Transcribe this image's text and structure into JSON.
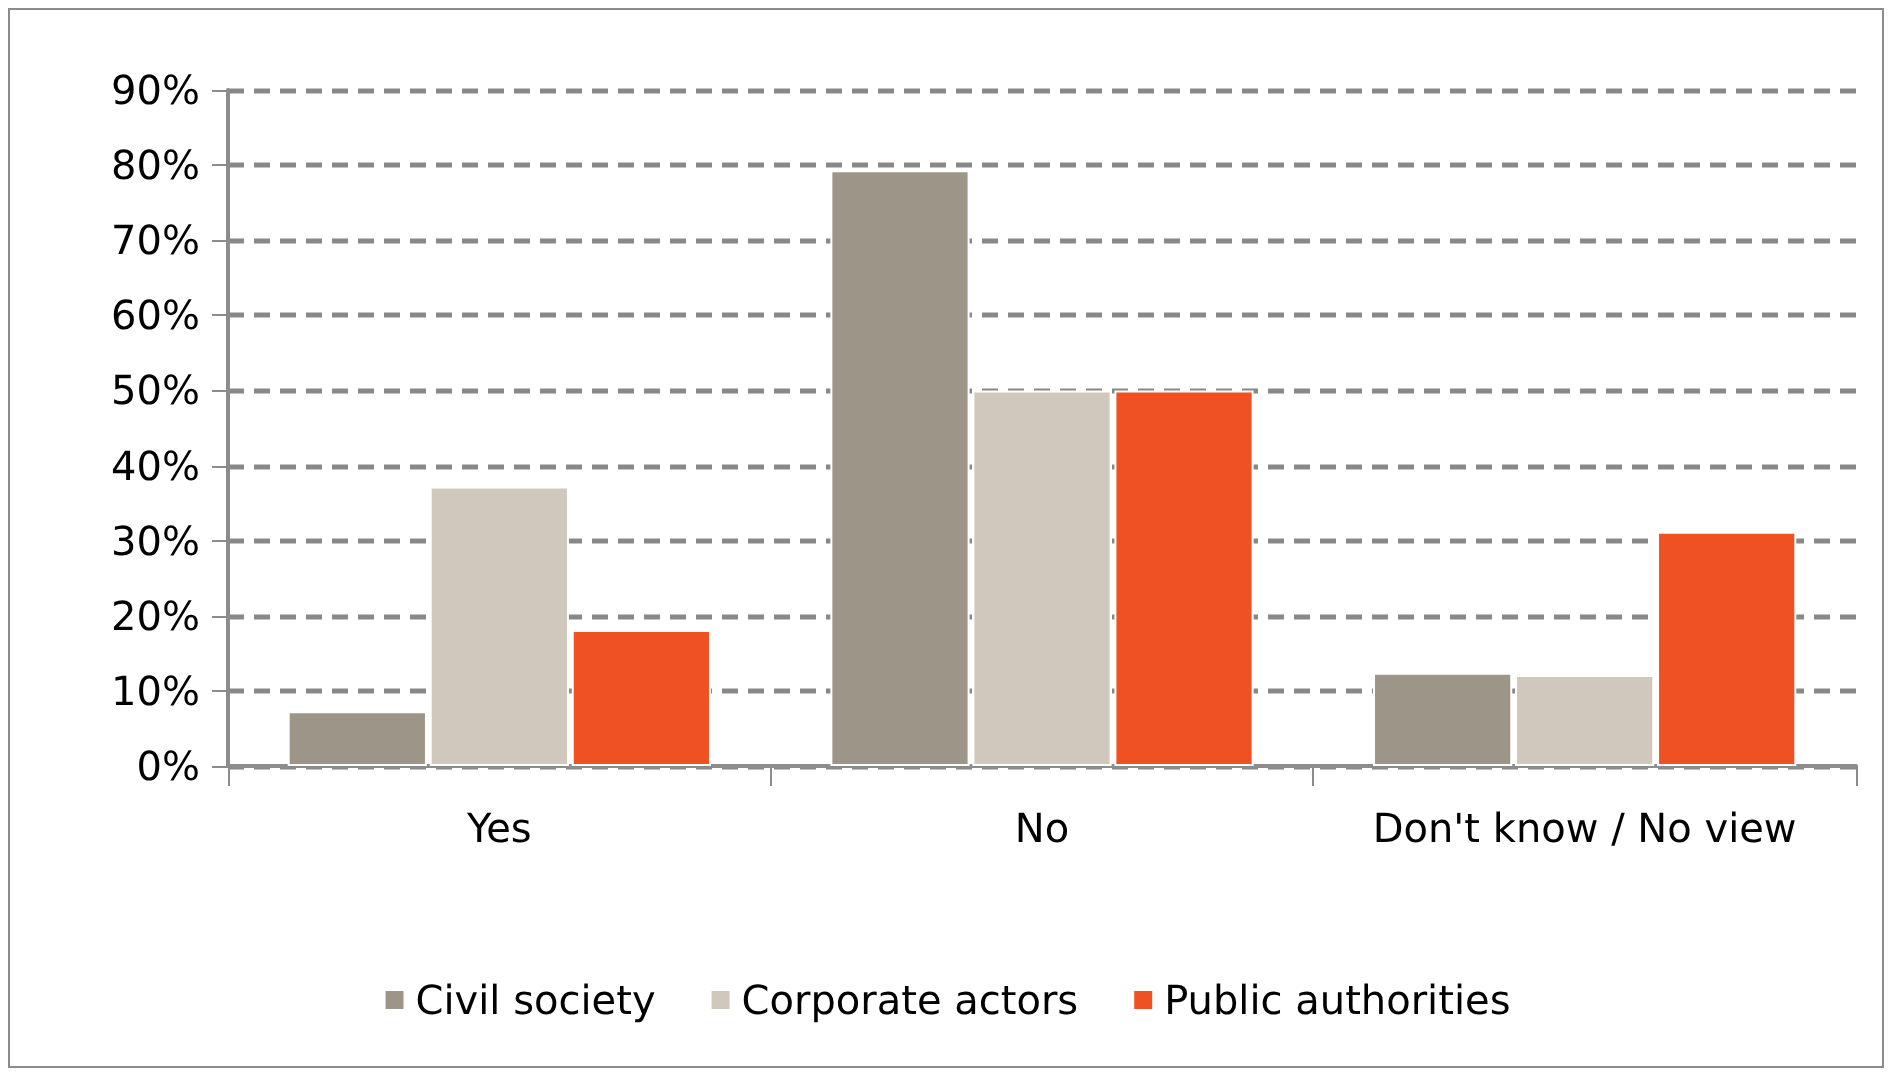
{
  "chart_data": {
    "type": "bar",
    "categories": [
      "Yes",
      "No",
      "Don't know / No view"
    ],
    "series": [
      {
        "name": "Civil society",
        "color": "#9e9589",
        "values": [
          7.3,
          79.3,
          12.4
        ]
      },
      {
        "name": "Corporate actors",
        "color": "#d0c8bd",
        "values": [
          37.2,
          50,
          12.1
        ]
      },
      {
        "name": "Public authorities",
        "color": "#ef5123",
        "values": [
          18.1,
          50,
          31.2
        ]
      }
    ],
    "ylim": [
      0,
      90
    ],
    "yticks": [
      {
        "value": 0,
        "label": "0%"
      },
      {
        "value": 10,
        "label": "10%"
      },
      {
        "value": 20,
        "label": "20%"
      },
      {
        "value": 30,
        "label": "30%"
      },
      {
        "value": 40,
        "label": "40%"
      },
      {
        "value": 50,
        "label": "50%"
      },
      {
        "value": 60,
        "label": "60%"
      },
      {
        "value": 70,
        "label": "70%"
      },
      {
        "value": 80,
        "label": "80%"
      },
      {
        "value": 90,
        "label": "90%"
      }
    ],
    "grid": "y",
    "legend": "bottom"
  }
}
